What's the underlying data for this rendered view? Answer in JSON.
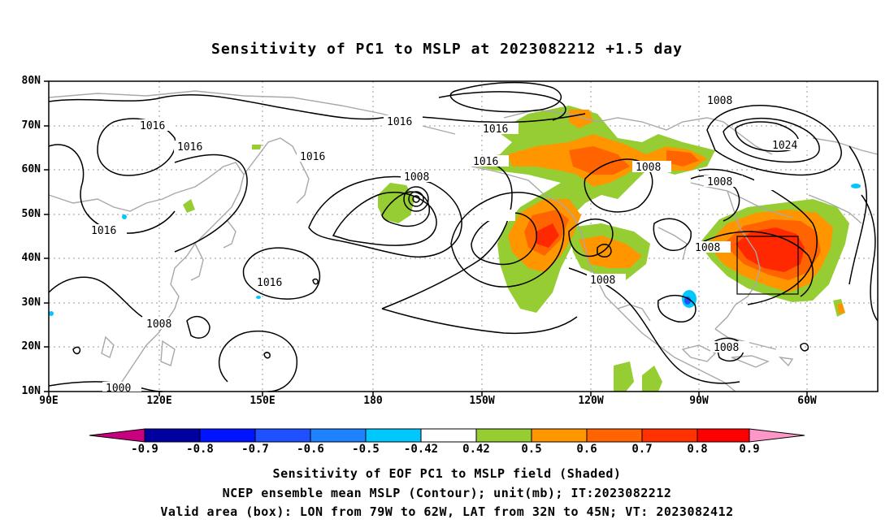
{
  "title": "Sensitivity of PC1 to MSLP at 2023082212 +1.5 day",
  "y_ticks": [
    "80N",
    "70N",
    "60N",
    "50N",
    "40N",
    "30N",
    "20N",
    "10N"
  ],
  "x_ticks": [
    "90E",
    "120E",
    "150E",
    "180",
    "150W",
    "120W",
    "90W",
    "60W"
  ],
  "contour_labels": [
    "1016",
    "1016",
    "1016",
    "1016",
    "1016",
    "1016",
    "1016",
    "1016",
    "1008",
    "1008",
    "1008",
    "1008",
    "1008",
    "1008",
    "1008",
    "1008",
    "1000",
    "1024"
  ],
  "colorbar": {
    "labels": [
      "-0.9",
      "-0.8",
      "-0.7",
      "-0.6",
      "-0.5",
      "-0.42",
      "0.42",
      "0.5",
      "0.6",
      "0.7",
      "0.8",
      "0.9"
    ],
    "colors": [
      "#c8007f",
      "#0000a0",
      "#0014ff",
      "#1e50ff",
      "#1e82ff",
      "#00c8ff",
      "#ffffff",
      "#96cd32",
      "#ff9600",
      "#ff6400",
      "#ff3200",
      "#ff0000",
      "#ff96c8"
    ]
  },
  "captions": {
    "line1": "Sensitivity of EOF PC1 to MSLP field (Shaded)",
    "line2": "NCEP ensemble mean MSLP (Contour); unit(mb); IT:2023082212",
    "line3": "Valid area (box): LON from 79W to 62W, LAT from 32N to 45N; VT: 2023082412"
  }
}
